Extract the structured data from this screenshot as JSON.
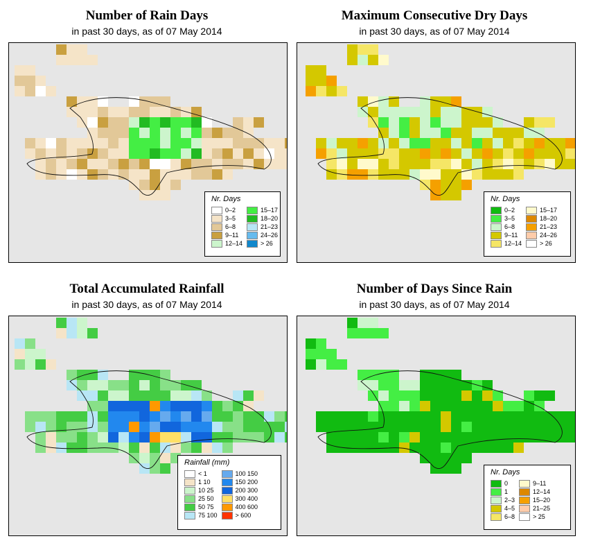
{
  "common": {
    "subtitle": "in past 30 days, as of  07 May 2014"
  },
  "panels": [
    {
      "id": "rain-days",
      "title": "Number of Rain Days",
      "legend_title": "Nr. Days",
      "legend": [
        [
          "0–2",
          "#ffffff"
        ],
        [
          "3–5",
          "#f5e4c8"
        ],
        [
          "6–8",
          "#e2c898"
        ],
        [
          "9–11",
          "#c9a040"
        ],
        [
          "12–14",
          "#ccf5cc"
        ],
        [
          "15–17",
          "#44ee44"
        ],
        [
          "18–20",
          "#22bb22"
        ],
        [
          "21–23",
          "#b8e6f5"
        ],
        [
          "24–26",
          "#66bbee"
        ],
        [
          "> 26",
          "#1188cc"
        ]
      ]
    },
    {
      "id": "max-dry-days",
      "title": "Maximum Consecutive Dry Days",
      "legend_title": "Nr. Days",
      "legend": [
        [
          "0–2",
          "#11bb11"
        ],
        [
          "3–5",
          "#44ee44"
        ],
        [
          "6–8",
          "#ccf5cc"
        ],
        [
          "9–11",
          "#d4c800"
        ],
        [
          "12–14",
          "#f5e666"
        ],
        [
          "15–17",
          "#fffacc"
        ],
        [
          "18–20",
          "#dd8800"
        ],
        [
          "21–23",
          "#f5a000"
        ],
        [
          "24–26",
          "#ffccaa"
        ],
        [
          "> 26",
          "#ffffff"
        ]
      ]
    },
    {
      "id": "total-rainfall",
      "title": "Total Accumulated Rainfall",
      "legend_title": "Rainfall (mm)",
      "legend": [
        [
          "< 1",
          "#ffffff"
        ],
        [
          "1    10",
          "#f5e4c8"
        ],
        [
          "10    25",
          "#ccf5cc"
        ],
        [
          "25    50",
          "#88e088"
        ],
        [
          "50    75",
          "#44cc44"
        ],
        [
          "75   100",
          "#b8e6f5"
        ],
        [
          "100  150",
          "#66aaee"
        ],
        [
          "150  200",
          "#2288ee"
        ],
        [
          "200  300",
          "#1166dd"
        ],
        [
          "300  400",
          "#ffe066"
        ],
        [
          "400  600",
          "#ff9900"
        ],
        [
          "> 600",
          "#ff3300"
        ]
      ]
    },
    {
      "id": "days-since-rain",
      "title": "Number of Days Since Rain",
      "legend_title": "Nr. Days",
      "legend": [
        [
          "0",
          "#11bb11"
        ],
        [
          "1",
          "#44ee44"
        ],
        [
          "2–3",
          "#ccf5cc"
        ],
        [
          "4–5",
          "#d4c800"
        ],
        [
          "6–8",
          "#f5e666"
        ],
        [
          "9–11",
          "#fffacc"
        ],
        [
          "12–14",
          "#dd8800"
        ],
        [
          "15–20",
          "#f5a000"
        ],
        [
          "21–25",
          "#ffccaa"
        ],
        [
          "> 25",
          "#ffffff"
        ]
      ]
    }
  ]
}
